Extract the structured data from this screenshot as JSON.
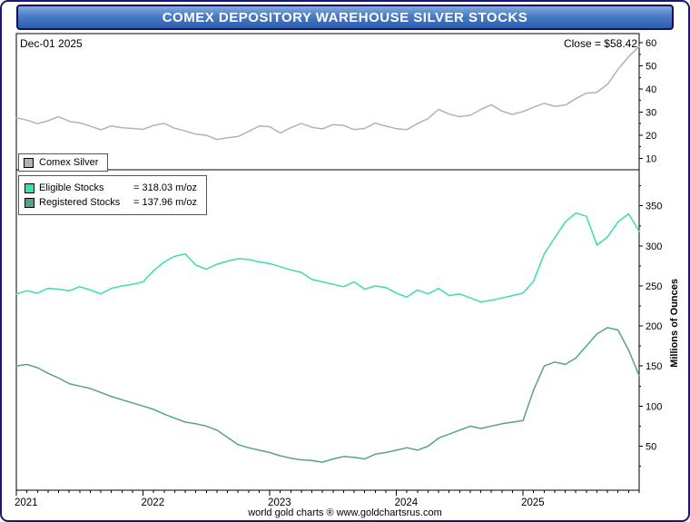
{
  "title_bar": {
    "title": "COMEX DEPOSITORY WAREHOUSE SILVER STOCKS"
  },
  "annotations": {
    "date": "Dec-01 2025",
    "close": "Close = $58.42"
  },
  "legend_top": {
    "label": "Comex Silver"
  },
  "legend_bottom": {
    "items": [
      {
        "label": "Eligible Stocks",
        "value": "= 318.03 m/oz",
        "color": "#3edcb0"
      },
      {
        "label": "Registered Stocks",
        "value": "= 137.96 m/oz",
        "color": "#5aa18c"
      }
    ]
  },
  "footer": {
    "credit": "world gold charts ® www.goldchartsrus.com"
  },
  "colors": {
    "frame_border": "#181878",
    "title_gradient_top": "#82aadd",
    "title_gradient_bottom": "#2d5dab",
    "panel_border": "#000000",
    "silver_line": "#b3b3b3",
    "eligible_line": "#3edcb0",
    "registered_line": "#5aa18c"
  },
  "chart_data": [
    {
      "type": "line",
      "title": "Comex Silver (price, USD/oz)",
      "name": "Comex Silver",
      "color": "#b3b3b3",
      "x_note": "monthly 2021-01 through 2025-12",
      "values": [
        27.5,
        26.5,
        25.0,
        26.2,
        28.0,
        26.0,
        25.3,
        23.9,
        22.3,
        24.0,
        23.2,
        22.9,
        22.5,
        24.2,
        25.1,
        23.0,
        21.8,
        20.4,
        19.9,
        18.1,
        18.9,
        19.4,
        21.6,
        23.9,
        23.7,
        20.9,
        23.2,
        25.1,
        23.4,
        22.7,
        24.6,
        24.2,
        22.4,
        22.9,
        25.2,
        23.9,
        22.8,
        22.4,
        25.0,
        27.2,
        31.2,
        29.1,
        28.0,
        28.6,
        31.1,
        33.2,
        30.4,
        29.0,
        30.2,
        32.1,
        33.8,
        32.5,
        33.0,
        35.8,
        38.2,
        38.6,
        42.0,
        48.5,
        54.0,
        58.42
      ],
      "close": 58.42,
      "ylim": [
        5,
        64
      ],
      "yticks": [
        10,
        20,
        30,
        40,
        50,
        60
      ],
      "yticks_minor": [
        15,
        25,
        35,
        45,
        55
      ],
      "legend_position": "bottom-left",
      "grid": false
    },
    {
      "type": "line",
      "title": "COMEX warehouse silver stocks",
      "x_note": "monthly 2021-01 through 2025-12",
      "series": [
        {
          "name": "Eligible Stocks",
          "color": "#3edcb0",
          "last_value": 318.03,
          "values": [
            240,
            244,
            241,
            247,
            246,
            244,
            249,
            245,
            240,
            247,
            250,
            252,
            255,
            269,
            280,
            287,
            290,
            276,
            271,
            277,
            281,
            284,
            283,
            280,
            278,
            274,
            270,
            267,
            258,
            255,
            252,
            249,
            255,
            246,
            250,
            248,
            241,
            236,
            245,
            240,
            247,
            238,
            240,
            235,
            230,
            232,
            235,
            238,
            241,
            256,
            290,
            310,
            330,
            341,
            337,
            301,
            311,
            330,
            340,
            318.03
          ]
        },
        {
          "name": "Registered Stocks",
          "color": "#5aa18c",
          "last_value": 137.96,
          "values": [
            150,
            152,
            148,
            141,
            135,
            128,
            125,
            122,
            117,
            112,
            108,
            104,
            100,
            96,
            90,
            85,
            80,
            78,
            75,
            70,
            61,
            52,
            48,
            45,
            42,
            38,
            35,
            33,
            32,
            30,
            34,
            37,
            36,
            34,
            40,
            42,
            45,
            48,
            45,
            50,
            60,
            65,
            70,
            75,
            72,
            75,
            78,
            80,
            82,
            120,
            150,
            155,
            152,
            160,
            175,
            190,
            198,
            195,
            170,
            137.96
          ]
        }
      ],
      "ylim": [
        -5,
        395
      ],
      "yticks": [
        50,
        100,
        150,
        200,
        250,
        300,
        350
      ],
      "yticks_minor": [
        25,
        75,
        125,
        175,
        225,
        275,
        325,
        375
      ],
      "ylabel": "Millions of Ounces",
      "x_tick_labels": [
        "2021",
        "2022",
        "2023",
        "2024",
        "2025"
      ],
      "legend_position": "top-left",
      "grid": false
    }
  ]
}
